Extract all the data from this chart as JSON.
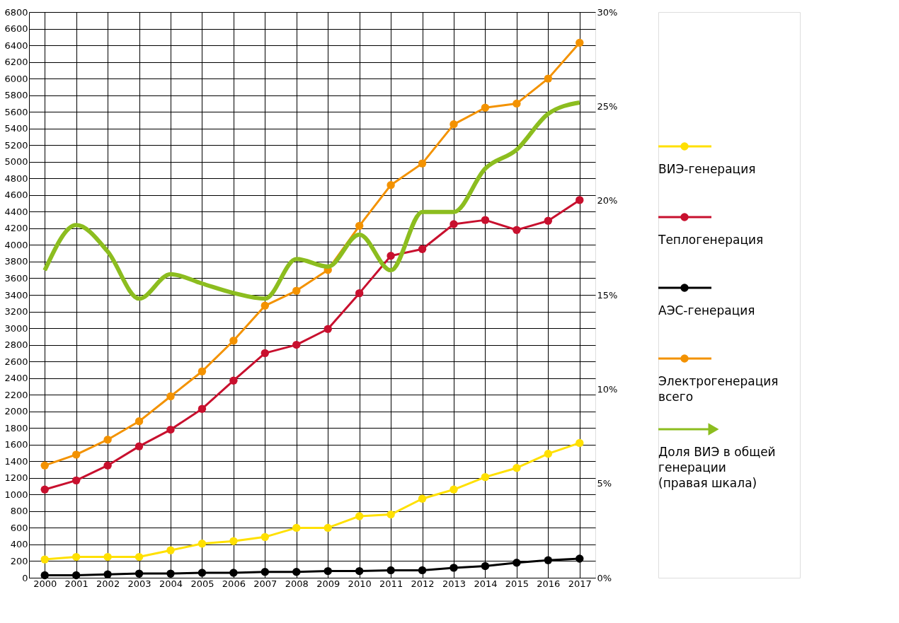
{
  "chart_data": {
    "type": "line",
    "categories": [
      "2000",
      "2001",
      "2002",
      "2003",
      "2004",
      "2005",
      "2006",
      "2007",
      "2008",
      "2009",
      "2010",
      "2011",
      "2012",
      "2013",
      "2014",
      "2015",
      "2016",
      "2017"
    ],
    "series": [
      {
        "name": "ВИЭ-генерация",
        "color": "#ffe000",
        "values": [
          220,
          250,
          250,
          250,
          330,
          410,
          440,
          490,
          600,
          600,
          740,
          760,
          950,
          1060,
          1210,
          1320,
          1490,
          1620
        ]
      },
      {
        "name": "Теплогенерация",
        "color": "#c8102e",
        "values": [
          1060,
          1170,
          1350,
          1580,
          1780,
          2030,
          2370,
          2700,
          2800,
          2990,
          3420,
          3870,
          3950,
          4250,
          4300,
          4180,
          4290,
          4540
        ]
      },
      {
        "name": "АЭС-генерация",
        "color": "#000000",
        "values": [
          30,
          30,
          40,
          50,
          50,
          60,
          60,
          70,
          70,
          80,
          80,
          90,
          90,
          120,
          140,
          180,
          210,
          230
        ]
      },
      {
        "name": "Электрогенерация всего",
        "color": "#f39200",
        "values": [
          1350,
          1480,
          1660,
          1880,
          2180,
          2480,
          2850,
          3270,
          3450,
          3700,
          4230,
          4720,
          4980,
          5450,
          5650,
          5700,
          6000,
          6430
        ]
      },
      {
        "name": "Доля ВИЭ в общей генерации (правая шкала)",
        "color": "#8cbd1f",
        "axis": "y2",
        "marker": "none",
        "values": [
          16.3,
          18.7,
          17.3,
          14.8,
          16.1,
          15.6,
          15.1,
          14.8,
          16.9,
          16.5,
          18.2,
          16.3,
          19.4,
          19.4,
          21.7,
          22.7,
          24.6,
          25.2
        ]
      }
    ],
    "ylim": [
      0,
      6800
    ],
    "yticks": [
      0,
      200,
      400,
      600,
      800,
      1000,
      1200,
      1400,
      1600,
      1800,
      2000,
      2200,
      2400,
      2600,
      2800,
      3000,
      3200,
      3400,
      3600,
      3800,
      4000,
      4200,
      4400,
      4600,
      4800,
      5000,
      5200,
      5400,
      5600,
      5800,
      6000,
      6200,
      6400,
      6600,
      6800
    ],
    "y2lim": [
      0,
      30
    ],
    "y2ticks": [
      {
        "value": 0,
        "label": "0%"
      },
      {
        "value": 5,
        "label": "5%"
      },
      {
        "value": 10,
        "label": "10%"
      },
      {
        "value": 15,
        "label": "15%"
      },
      {
        "value": 20,
        "label": "20%"
      },
      {
        "value": 25,
        "label": "25%"
      },
      {
        "value": 30,
        "label": "30%"
      }
    ],
    "grid": true,
    "legend": "right",
    "marker": "circle",
    "line_style": "solid"
  }
}
